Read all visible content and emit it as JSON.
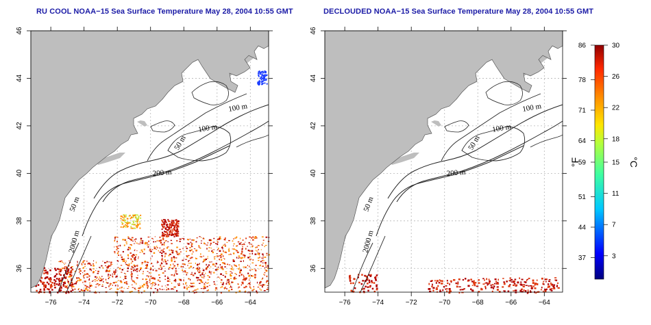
{
  "panels": [
    {
      "title": "RU COOL NOAA−15 Sea Surface Temperature May 28, 2004 10:55 GMT",
      "contour_labels": [
        "100 m",
        "100 m",
        "50 m",
        "200 m",
        "50 m",
        "2000 m"
      ],
      "variant": "cool"
    },
    {
      "title": "DECLOUDED NOAA−15 Sea Surface Temperature May 28, 2004 10:55 GMT",
      "contour_labels": [
        "100 m",
        "100 m",
        "50 m",
        "200 m",
        "50 m",
        "2000 m"
      ],
      "variant": "declouded"
    }
  ],
  "axes": {
    "lon_ticks": [
      "−76",
      "−74",
      "−72",
      "−70",
      "−68",
      "−66",
      "−64"
    ],
    "lat_ticks": [
      "36",
      "38",
      "40",
      "42",
      "44",
      "46"
    ],
    "lon_range": [
      -77.2,
      -62.9
    ],
    "lat_range": [
      35.0,
      46.0
    ]
  },
  "colorbar": {
    "fahrenheit_ticks": [
      "86",
      "78",
      "71",
      "64",
      "59",
      "51",
      "44",
      "37"
    ],
    "celsius_ticks": [
      "30",
      "26",
      "22",
      "18",
      "15",
      "11",
      "7",
      "3"
    ],
    "fahrenheit_unit": "°F",
    "celsius_unit": "°C",
    "range_c": [
      0,
      30
    ]
  },
  "colors": {
    "land": "#bebebe",
    "water": "#ffffff",
    "grid": "#b4b4b4",
    "contour": "#222222",
    "title": "#1a1aa6",
    "warm_dark": "#b00000",
    "warm": "#e03a10",
    "warm_orange": "#ff8c00",
    "cool_blue": "#1a3cff"
  }
}
